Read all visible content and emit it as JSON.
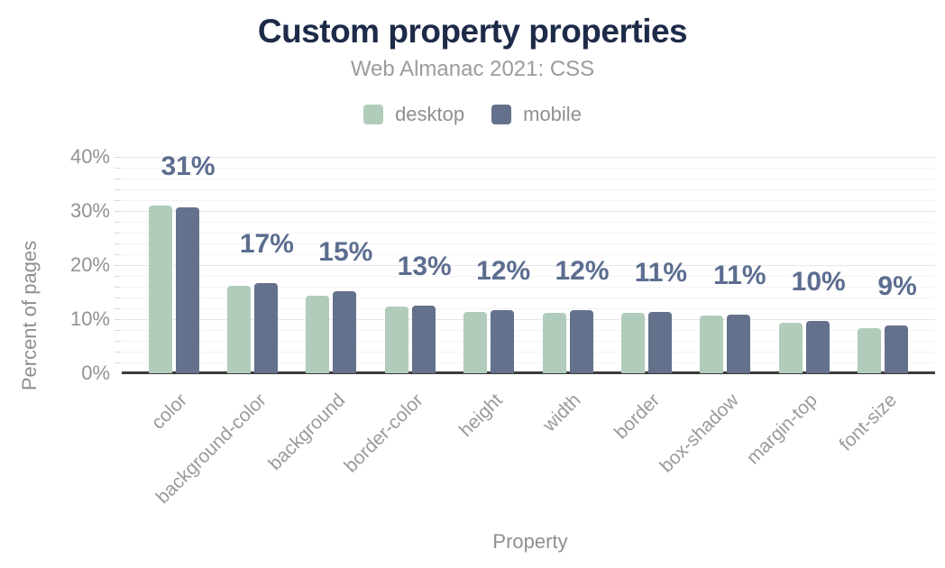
{
  "chart_data": {
    "type": "bar",
    "title": "Custom property properties",
    "subtitle": "Web Almanac 2021: CSS",
    "xlabel": "Property",
    "ylabel": "Percent of pages",
    "categories": [
      "color",
      "background-color",
      "background",
      "border-color",
      "height",
      "width",
      "border",
      "box-shadow",
      "margin-top",
      "font-size"
    ],
    "series": [
      {
        "name": "desktop",
        "color": "#b1ccbb",
        "values": [
          31.0,
          16.2,
          14.3,
          12.3,
          11.3,
          11.1,
          11.2,
          10.6,
          9.4,
          8.4
        ]
      },
      {
        "name": "mobile",
        "color": "#64718c",
        "values": [
          30.7,
          16.7,
          15.2,
          12.5,
          11.7,
          11.7,
          11.3,
          10.9,
          9.7,
          8.8
        ]
      }
    ],
    "data_labels": [
      "31%",
      "17%",
      "15%",
      "13%",
      "12%",
      "12%",
      "11%",
      "11%",
      "10%",
      "9%"
    ],
    "data_label_color": "#5c6d90",
    "title_color": "#1d2b49",
    "ytick_labels": [
      "0%",
      "10%",
      "20%",
      "30%",
      "40%"
    ],
    "ytick_values": [
      0,
      10,
      20,
      30,
      40
    ],
    "ylim": [
      0,
      40
    ],
    "grid": true,
    "legend_position": "top"
  }
}
